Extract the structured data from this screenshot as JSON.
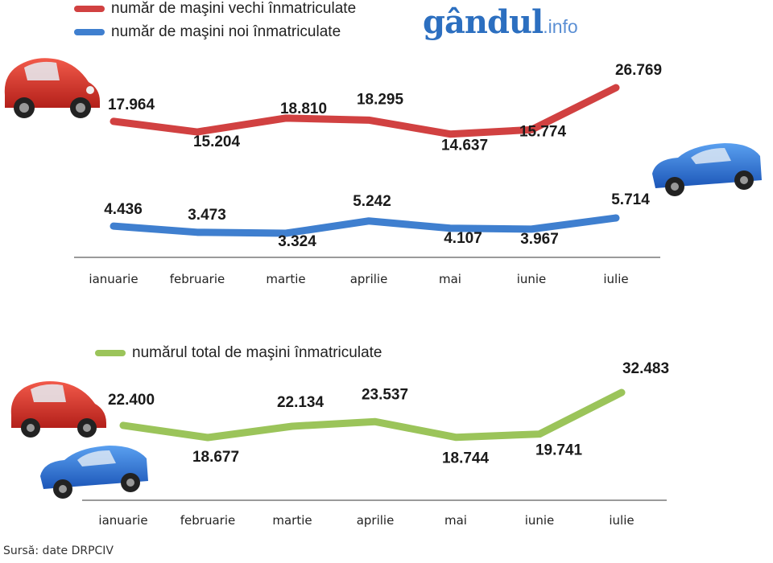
{
  "colors": {
    "old": "#d14141",
    "new": "#3f7fcf",
    "total": "#9bc45a",
    "axis": "#9a9a9a",
    "logo": "#2c6fc0"
  },
  "logo": {
    "name": "gândul",
    "suffix": ".info"
  },
  "legend": {
    "old": "număr de maşini vechi înmatriculate",
    "new": "număr de maşini noi înmatriculate",
    "total": "numărul total de maşini înmatriculate"
  },
  "source": "Sursă: date DRPCIV",
  "chart_data": [
    {
      "type": "line",
      "title": "",
      "xlabel": "",
      "ylabel": "",
      "categories": [
        "ianuarie",
        "februarie",
        "martie",
        "aprilie",
        "mai",
        "iunie",
        "iulie"
      ],
      "series": [
        {
          "name": "număr de maşini vechi înmatriculate",
          "values": [
            17964,
            15204,
            18810,
            18295,
            14637,
            15774,
            26769
          ],
          "labels": [
            "17.964",
            "15.204",
            "18.810",
            "18.295",
            "14.637",
            "15.774",
            "26.769"
          ]
        },
        {
          "name": "număr de maşini noi înmatriculate",
          "values": [
            4436,
            3473,
            3324,
            5242,
            4107,
            3967,
            5714
          ],
          "labels": [
            "4.436",
            "3.473",
            "3.324",
            "5.242",
            "4.107",
            "3.967",
            "5.714"
          ]
        }
      ]
    },
    {
      "type": "line",
      "title": "",
      "xlabel": "",
      "ylabel": "",
      "categories": [
        "ianuarie",
        "februarie",
        "martie",
        "aprilie",
        "mai",
        "iunie",
        "iulie"
      ],
      "series": [
        {
          "name": "numărul total de maşini înmatriculate",
          "values": [
            22400,
            18677,
            22134,
            23537,
            18744,
            19741,
            32483
          ],
          "labels": [
            "22.400",
            "18.677",
            "22.134",
            "23.537",
            "18.744",
            "19.741",
            "32.483"
          ]
        }
      ]
    }
  ]
}
